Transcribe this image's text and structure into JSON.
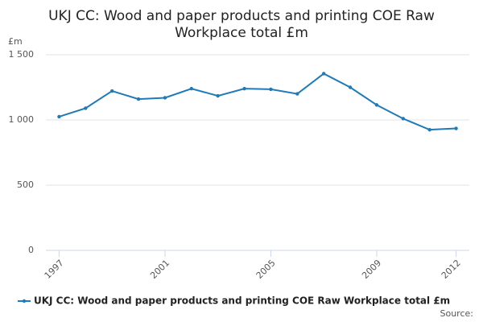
{
  "chart_data": {
    "type": "line",
    "title": "UKJ CC: Wood and paper products and printing COE Raw Workplace total £m",
    "y_label": "£m",
    "source": "Source:",
    "x": [
      1997,
      1998,
      1999,
      2000,
      2001,
      2002,
      2003,
      2004,
      2005,
      2006,
      2007,
      2008,
      2009,
      2010,
      2011,
      2012
    ],
    "series": [
      {
        "name": "UKJ CC: Wood and paper products and printing COE Raw Workplace total £m",
        "color": "#1f7ab8",
        "values": [
          1025,
          1090,
          1222,
          1160,
          1170,
          1240,
          1185,
          1240,
          1235,
          1200,
          1355,
          1250,
          1115,
          1010,
          925,
          935
        ]
      }
    ],
    "xlim": [
      1996.5,
      2012.5
    ],
    "xticks": [
      1997,
      2001,
      2005,
      2009,
      2012
    ],
    "ylim": [
      0,
      1500
    ],
    "yticks": [
      0,
      500,
      {
        "value": 1000,
        "label": "1 000"
      },
      {
        "value": 1500,
        "label": "1 500"
      }
    ],
    "grid": true
  }
}
